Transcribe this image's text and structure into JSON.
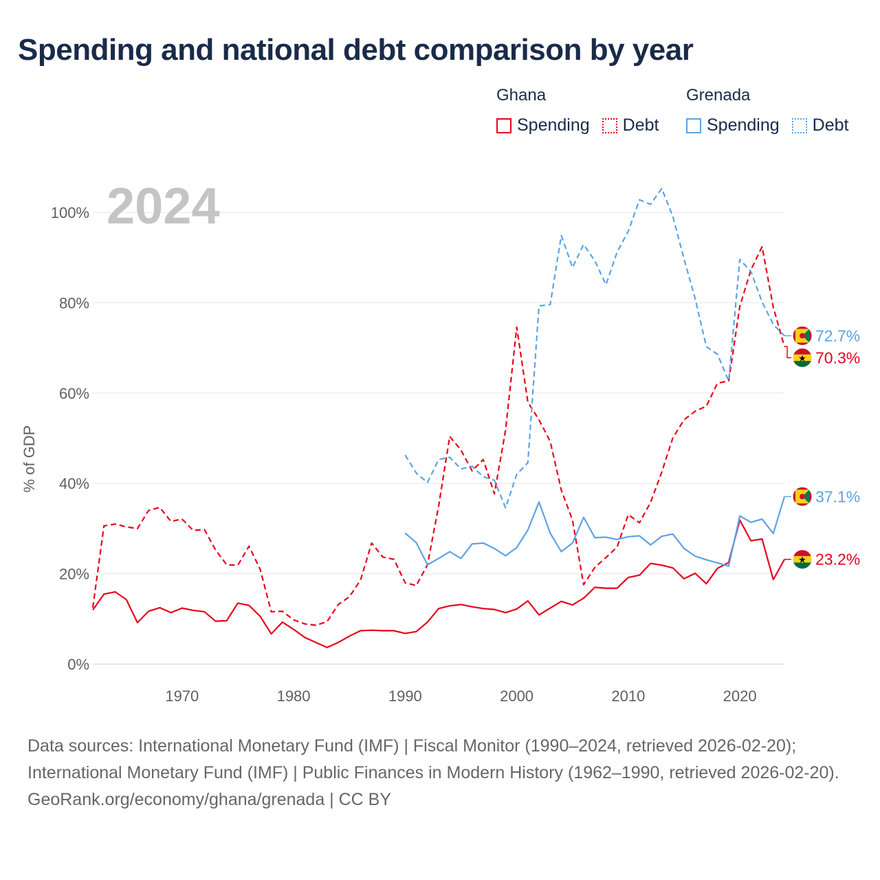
{
  "title": "Spending and national debt comparison by year",
  "legend": {
    "groups": [
      {
        "name": "Ghana",
        "items": [
          {
            "label": "Spending",
            "style": "solid",
            "color": "#e8001c"
          },
          {
            "label": "Debt",
            "style": "dotted",
            "color": "#e8001c"
          }
        ]
      },
      {
        "name": "Grenada",
        "items": [
          {
            "label": "Spending",
            "style": "solid",
            "color": "#5ba3e6"
          },
          {
            "label": "Debt",
            "style": "dotted",
            "color": "#5ba3e6"
          }
        ]
      }
    ]
  },
  "footer": {
    "sources": "Data sources: International Monetary Fund (IMF) | Fiscal Monitor (1990–2024, retrieved 2026-02-20); International Monetary Fund (IMF) | Public Finances in Modern History (1962–1990, retrieved 2026-02-20).",
    "credit": "GeoRank.org/economy/ghana/grenada | CC BY"
  },
  "chart_data": {
    "type": "line",
    "year_watermark": "2024",
    "ylabel": "% of GDP",
    "xlabel": "",
    "xlim": [
      1962,
      2024
    ],
    "ylim": [
      0,
      100
    ],
    "x_ticks": [
      1970,
      1980,
      1990,
      2000,
      2010,
      2020
    ],
    "x_tick_labels": [
      "1970",
      "1980",
      "1990",
      "2000",
      "2010",
      "2020"
    ],
    "y_ticks": [
      0,
      20,
      40,
      60,
      80,
      100
    ],
    "y_tick_labels": [
      "0%",
      "20%",
      "40%",
      "60%",
      "80%",
      "100%"
    ],
    "series": [
      {
        "name": "Ghana Spending",
        "country": "Ghana",
        "metric": "Spending",
        "color": "#e8001c",
        "dash": "solid",
        "end_label": "23.2%",
        "flag": "ghana",
        "start_year": 1962,
        "values": [
          12,
          15.5,
          16,
          14.3,
          9.2,
          11.7,
          12.5,
          11.4,
          12.4,
          11.9,
          11.6,
          9.5,
          9.6,
          13.5,
          13.0,
          10.6,
          6.7,
          9.3,
          7.7,
          5.9,
          4.8,
          3.7,
          4.8,
          6.2,
          7.4,
          7.5,
          7.4,
          7.4,
          6.8,
          7.2,
          9.3,
          12.3,
          12.9,
          13.2,
          12.7,
          12.3,
          12.1,
          11.4,
          12.2,
          14.0,
          10.9,
          12.4,
          13.9,
          13.1,
          14.6,
          17.0,
          16.8,
          16.8,
          19.2,
          19.7,
          22.3,
          21.9,
          21.3,
          18.9,
          20.1,
          17.8,
          21.2,
          22.5,
          31.9,
          27.3,
          27.7,
          18.7,
          23.2
        ]
      },
      {
        "name": "Ghana Debt",
        "country": "Ghana",
        "metric": "Debt",
        "color": "#e8001c",
        "dash": "dashed",
        "end_label": "70.3%",
        "flag": "ghana",
        "start_year": 1962,
        "values": [
          12.5,
          30.6,
          31.0,
          30.4,
          30.0,
          34.0,
          34.7,
          31.6,
          32.1,
          29.6,
          29.8,
          25.3,
          22.0,
          21.9,
          26.1,
          21.0,
          11.6,
          11.7,
          9.8,
          8.9,
          8.6,
          9.4,
          13.2,
          14.9,
          18.6,
          26.8,
          23.7,
          23.2,
          18.0,
          17.4,
          22.0,
          35.0,
          50.4,
          47.4,
          42.8,
          45.3,
          37.7,
          51.8,
          74.6,
          58.0,
          54.1,
          49.3,
          38.5,
          31.9,
          17.6,
          21.4,
          23.6,
          25.9,
          33.1,
          31.3,
          35.8,
          42.5,
          50.1,
          54.1,
          56.0,
          57.1,
          62.2,
          62.7,
          79.2,
          87.3,
          92.4,
          79.0,
          70.3
        ]
      },
      {
        "name": "Grenada Spending",
        "country": "Grenada",
        "metric": "Spending",
        "color": "#5ba3e6",
        "dash": "solid",
        "end_label": "37.1%",
        "flag": "grenada",
        "start_year": 1990,
        "values": [
          29.0,
          26.9,
          22.0,
          23.4,
          24.9,
          23.4,
          26.6,
          26.8,
          25.6,
          24.0,
          25.8,
          29.7,
          35.9,
          29.0,
          24.9,
          26.8,
          32.5,
          28.0,
          28.1,
          27.6,
          28.2,
          28.4,
          26.4,
          28.3,
          28.8,
          25.6,
          23.9,
          23.1,
          22.4,
          21.7,
          32.8,
          31.4,
          32.1,
          28.9,
          37.1
        ]
      },
      {
        "name": "Grenada Debt",
        "country": "Grenada",
        "metric": "Debt",
        "color": "#5ba3e6",
        "dash": "dashed",
        "end_label": "72.7%",
        "flag": "grenada",
        "start_year": 1990,
        "values": [
          46.3,
          42.3,
          40.2,
          45.3,
          45.8,
          43.2,
          43.8,
          41.5,
          40.7,
          34.6,
          42.0,
          44.6,
          79.3,
          79.6,
          94.9,
          87.8,
          92.9,
          89.3,
          84.0,
          91.2,
          95.8,
          102.8,
          101.8,
          105.3,
          99.1,
          89.7,
          80.9,
          70.3,
          68.6,
          62.7,
          89.6,
          86.9,
          80.2,
          75.2,
          72.7
        ]
      }
    ]
  }
}
